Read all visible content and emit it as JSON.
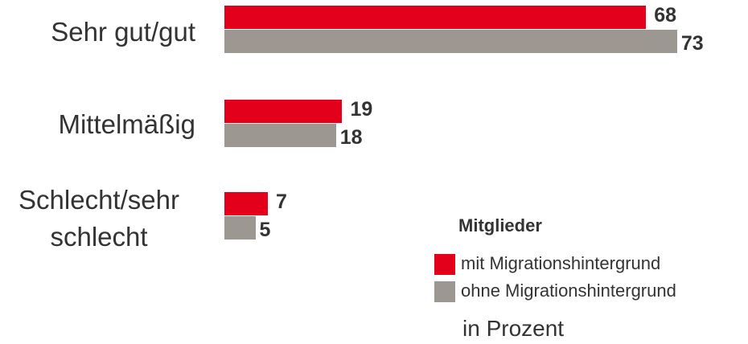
{
  "chart_data": {
    "type": "bar",
    "orientation": "horizontal",
    "categories": [
      "Sehr gut/gut",
      "Mittelmäßig",
      "Schlecht/sehr schlecht"
    ],
    "series": [
      {
        "name": "mit Migrationshintergrund",
        "color": "#e2001a",
        "values": [
          68,
          19,
          7
        ]
      },
      {
        "name": "ohne Migrationshintergrund",
        "color": "#9c9891",
        "values": [
          73,
          18,
          5
        ]
      }
    ],
    "legend_title": "Mitglieder",
    "note": "in Prozent"
  }
}
